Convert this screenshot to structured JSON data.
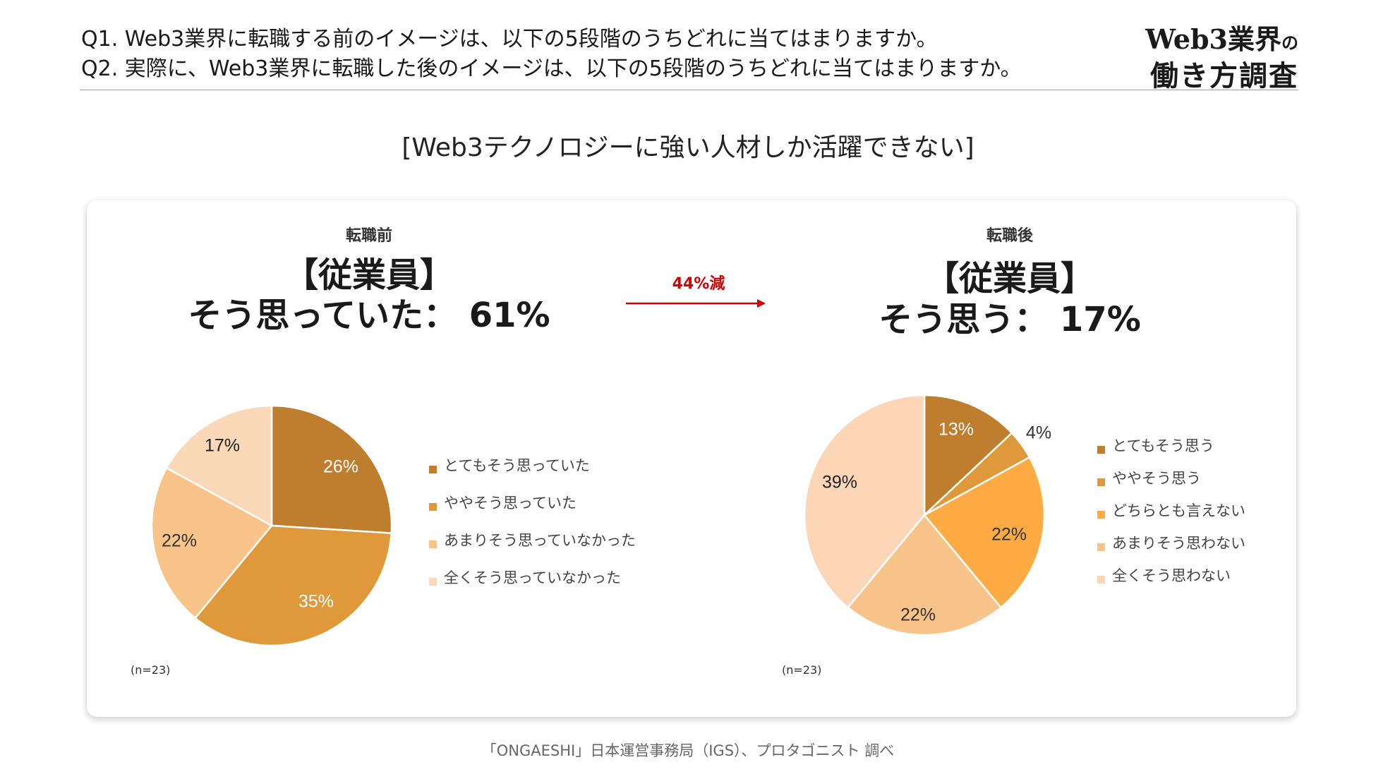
{
  "header": {
    "q1": "Q1. Web3業界に転職する前のイメージは、以下の5段階のうちどれに当てはまりますか。",
    "q2": "Q2. 実際に、Web3業界に転職した後のイメージは、以下の5段階のうちどれに当てはまりますか。",
    "brand_line1_main": "Web3業界",
    "brand_line1_small": "の",
    "brand_line2": "働き方調査"
  },
  "subtitle": "[Web3テクノロジーに強い人材しか活躍できない]",
  "comparison": {
    "reduction_label": "44%減"
  },
  "footer": "「ONGAESHI」日本運営事務局（IGS）、プロタゴニスト 調べ",
  "colors": {
    "accent": "#d40000"
  },
  "chart_data": [
    {
      "type": "pie",
      "panel_label": "転職前",
      "headline1": "【従業員】",
      "headline2": "そう思っていた：  61%",
      "n_label": "(n=23)",
      "categories": [
        "とてもそう思っていた",
        "ややそう思っていた",
        "あまりそう思っていなかった",
        "全くそう思っていなかった"
      ],
      "values": [
        26,
        35,
        22,
        17
      ],
      "labels": [
        "26%",
        "35%",
        "22%",
        "17%"
      ],
      "colors": [
        "#bf7d2e",
        "#e0993a",
        "#f9c48a",
        "#fbd8b8"
      ],
      "label_colors": [
        "#ffffff",
        "#ffffff",
        "#333333",
        "#222222"
      ]
    },
    {
      "type": "pie",
      "panel_label": "転職後",
      "headline1": "【従業員】",
      "headline2": "そう思う：  17%",
      "n_label": "(n=23)",
      "categories": [
        "とてもそう思う",
        "ややそう思う",
        "どちらとも言えない",
        "あまりそう思わない",
        "全くそう思わない"
      ],
      "values": [
        13,
        4,
        22,
        22,
        39
      ],
      "labels": [
        "13%",
        "4%",
        "22%",
        "22%",
        "39%"
      ],
      "colors": [
        "#bf7d2e",
        "#e0993a",
        "#fdab42",
        "#f9c48a",
        "#fdd6b8"
      ],
      "label_colors": [
        "#ffffff",
        "#333333",
        "#333333",
        "#333333",
        "#222222"
      ]
    }
  ]
}
